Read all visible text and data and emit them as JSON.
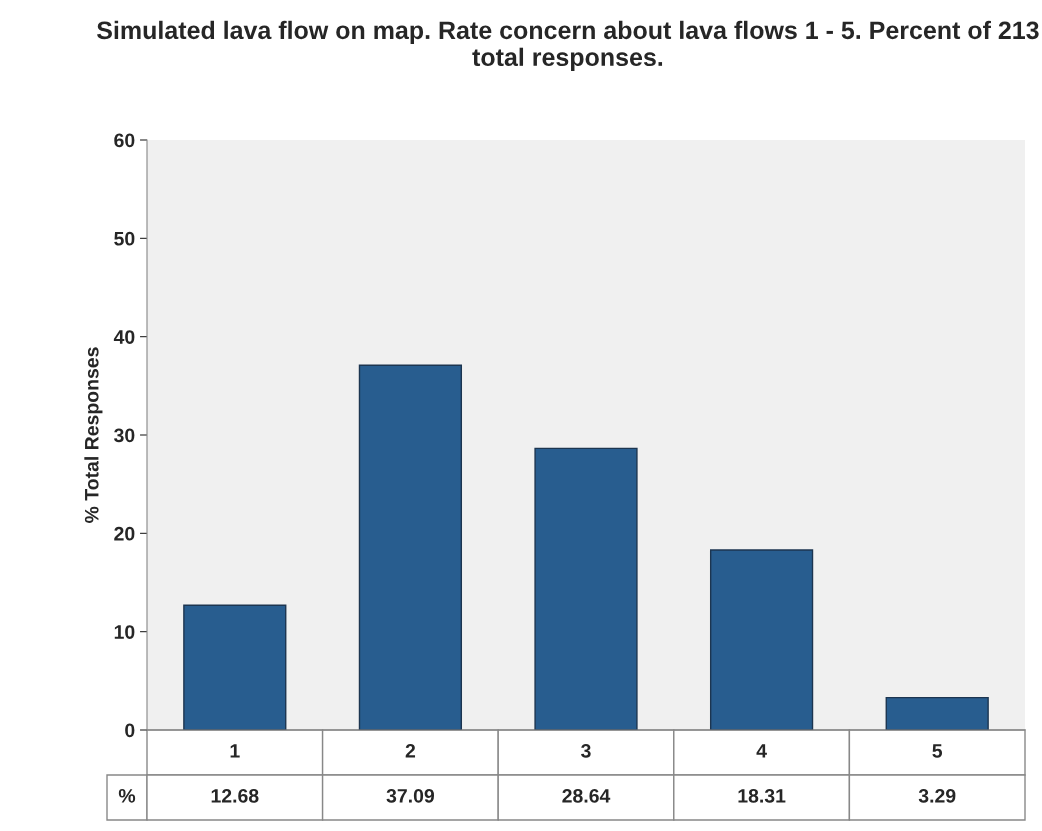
{
  "chart_data": {
    "type": "bar",
    "title": "Simulated lava flow on map. Rate concern about lava flows 1 - 5. Percent of 213 total responses.",
    "ylabel": "% Total Responses",
    "categories": [
      "1",
      "2",
      "3",
      "4",
      "5"
    ],
    "series": [
      {
        "name": "%",
        "color": "#285d8f",
        "values": [
          12.68,
          37.09,
          28.64,
          18.31,
          3.29
        ]
      }
    ],
    "ylim": [
      0,
      60
    ],
    "yticks": [
      0,
      10,
      20,
      30,
      40,
      50,
      60
    ],
    "grid": false,
    "legend": false,
    "data_labels": true
  }
}
